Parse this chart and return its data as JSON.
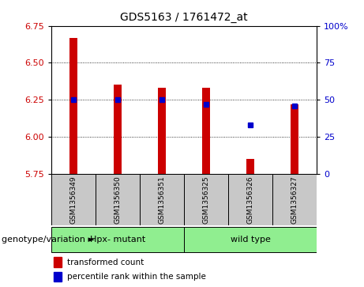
{
  "title": "GDS5163 / 1761472_at",
  "samples": [
    "GSM1356349",
    "GSM1356350",
    "GSM1356351",
    "GSM1356325",
    "GSM1356326",
    "GSM1356327"
  ],
  "transformed_counts": [
    6.67,
    6.35,
    6.33,
    6.33,
    5.85,
    6.22
  ],
  "percentile_ranks": [
    50,
    50,
    50,
    47,
    33,
    46
  ],
  "group_labels": [
    "Hpx- mutant",
    "wild type"
  ],
  "group_ranges": [
    [
      0,
      2
    ],
    [
      3,
      5
    ]
  ],
  "group_color": "#90EE90",
  "ylim_left": [
    5.75,
    6.75
  ],
  "ylim_right": [
    0,
    100
  ],
  "yticks_left": [
    5.75,
    6.0,
    6.25,
    6.5,
    6.75
  ],
  "yticks_right": [
    0,
    25,
    50,
    75,
    100
  ],
  "ytick_labels_right": [
    "0",
    "25",
    "50",
    "75",
    "100%"
  ],
  "hgrid_vals": [
    6.0,
    6.25,
    6.5
  ],
  "bar_color": "#CC0000",
  "dot_color": "#0000CC",
  "sample_box_color": "#C8C8C8",
  "label_color_left": "#CC0000",
  "label_color_right": "#0000CC",
  "genotype_label": "genotype/variation",
  "legend_bar": "transformed count",
  "legend_dot": "percentile rank within the sample",
  "bar_width": 0.18,
  "title_fontsize": 10,
  "tick_fontsize": 8,
  "sample_fontsize": 6.5,
  "legend_fontsize": 7.5,
  "geno_fontsize": 8
}
